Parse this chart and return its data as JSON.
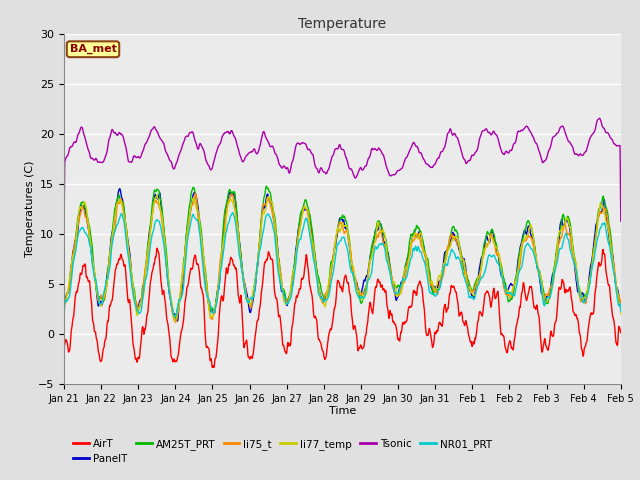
{
  "title": "Temperature",
  "xlabel": "Time",
  "ylabel": "Temperatures (C)",
  "ylim": [
    -5,
    30
  ],
  "annotation": "BA_met",
  "series_order": [
    "AirT",
    "PanelT",
    "AM25T_PRT",
    "li75_t",
    "li77_temp",
    "Tsonic",
    "NR01_PRT"
  ],
  "series": {
    "AirT": {
      "color": "#FF0000",
      "lw": 1.0
    },
    "PanelT": {
      "color": "#0000CC",
      "lw": 1.0
    },
    "AM25T_PRT": {
      "color": "#00BB00",
      "lw": 1.0
    },
    "li75_t": {
      "color": "#FF8800",
      "lw": 1.0
    },
    "li77_temp": {
      "color": "#CCCC00",
      "lw": 1.0
    },
    "Tsonic": {
      "color": "#AA00AA",
      "lw": 1.0
    },
    "NR01_PRT": {
      "color": "#00CCCC",
      "lw": 1.0
    }
  },
  "tick_labels": [
    "Jan 21",
    "Jan 22",
    "Jan 23",
    "Jan 24",
    "Jan 25",
    "Jan 26",
    "Jan 27",
    "Jan 28",
    "Jan 29",
    "Jan 30",
    "Jan 31",
    "Feb 1",
    "Feb 2",
    "Feb 3",
    "Feb 4",
    "Feb 5"
  ],
  "yticks": [
    -5,
    0,
    5,
    10,
    15,
    20,
    25,
    30
  ],
  "background_color": "#E0E0E0",
  "plot_bg_color": "#EBEBEB",
  "grid_color": "#FFFFFF",
  "seed": 42,
  "n_points": 1500
}
